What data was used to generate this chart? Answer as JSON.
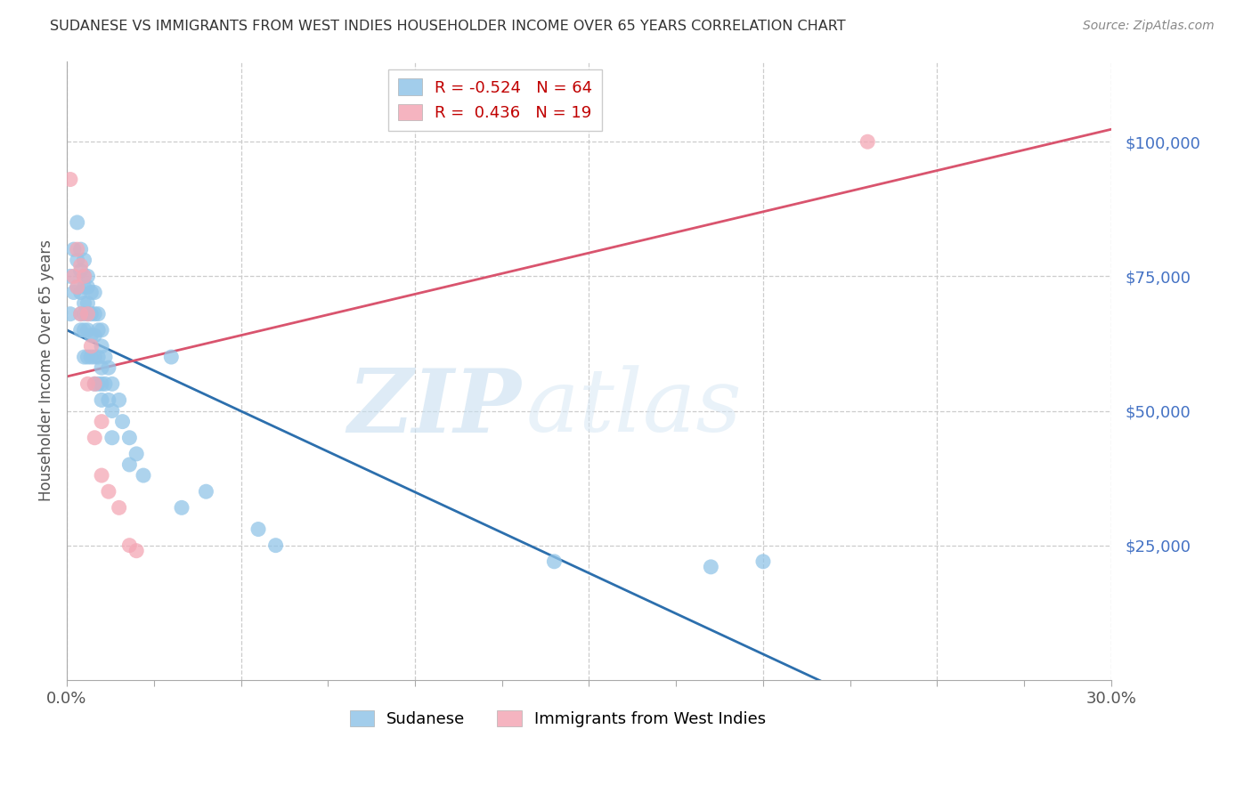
{
  "title": "SUDANESE VS IMMIGRANTS FROM WEST INDIES HOUSEHOLDER INCOME OVER 65 YEARS CORRELATION CHART",
  "source": "Source: ZipAtlas.com",
  "ylabel": "Householder Income Over 65 years",
  "ytick_labels": [
    "$25,000",
    "$50,000",
    "$75,000",
    "$100,000"
  ],
  "ytick_values": [
    25000,
    50000,
    75000,
    100000
  ],
  "ymin": 0,
  "ymax": 115000,
  "xmin": 0.0,
  "xmax": 0.3,
  "legend_blue_r": "-0.524",
  "legend_blue_n": "64",
  "legend_pink_r": "0.436",
  "legend_pink_n": "19",
  "blue_scatter_color": "#92c5e8",
  "pink_scatter_color": "#f4a7b5",
  "blue_line_color": "#2c6fad",
  "pink_line_color": "#d9546e",
  "watermark_zip": "ZIP",
  "watermark_atlas": "atlas",
  "sudanese_x": [
    0.001,
    0.001,
    0.002,
    0.002,
    0.003,
    0.003,
    0.003,
    0.004,
    0.004,
    0.004,
    0.004,
    0.004,
    0.005,
    0.005,
    0.005,
    0.005,
    0.005,
    0.005,
    0.005,
    0.006,
    0.006,
    0.006,
    0.006,
    0.006,
    0.006,
    0.007,
    0.007,
    0.007,
    0.007,
    0.008,
    0.008,
    0.008,
    0.008,
    0.008,
    0.009,
    0.009,
    0.009,
    0.009,
    0.01,
    0.01,
    0.01,
    0.01,
    0.01,
    0.011,
    0.011,
    0.012,
    0.012,
    0.013,
    0.013,
    0.013,
    0.015,
    0.016,
    0.018,
    0.018,
    0.02,
    0.022,
    0.03,
    0.033,
    0.04,
    0.055,
    0.06,
    0.14,
    0.185,
    0.2
  ],
  "sudanese_y": [
    75000,
    68000,
    80000,
    72000,
    85000,
    78000,
    73000,
    80000,
    76000,
    72000,
    68000,
    65000,
    78000,
    75000,
    73000,
    70000,
    68000,
    65000,
    60000,
    75000,
    73000,
    70000,
    68000,
    65000,
    60000,
    72000,
    68000,
    64000,
    60000,
    72000,
    68000,
    64000,
    60000,
    55000,
    68000,
    65000,
    60000,
    55000,
    65000,
    62000,
    58000,
    55000,
    52000,
    60000,
    55000,
    58000,
    52000,
    55000,
    50000,
    45000,
    52000,
    48000,
    45000,
    40000,
    42000,
    38000,
    60000,
    32000,
    35000,
    28000,
    25000,
    22000,
    21000,
    22000
  ],
  "westindies_x": [
    0.001,
    0.002,
    0.003,
    0.003,
    0.004,
    0.004,
    0.005,
    0.006,
    0.006,
    0.007,
    0.008,
    0.008,
    0.01,
    0.01,
    0.012,
    0.015,
    0.018,
    0.02,
    0.23
  ],
  "westindies_y": [
    93000,
    75000,
    80000,
    73000,
    77000,
    68000,
    75000,
    68000,
    55000,
    62000,
    55000,
    45000,
    48000,
    38000,
    35000,
    32000,
    25000,
    24000,
    100000
  ]
}
